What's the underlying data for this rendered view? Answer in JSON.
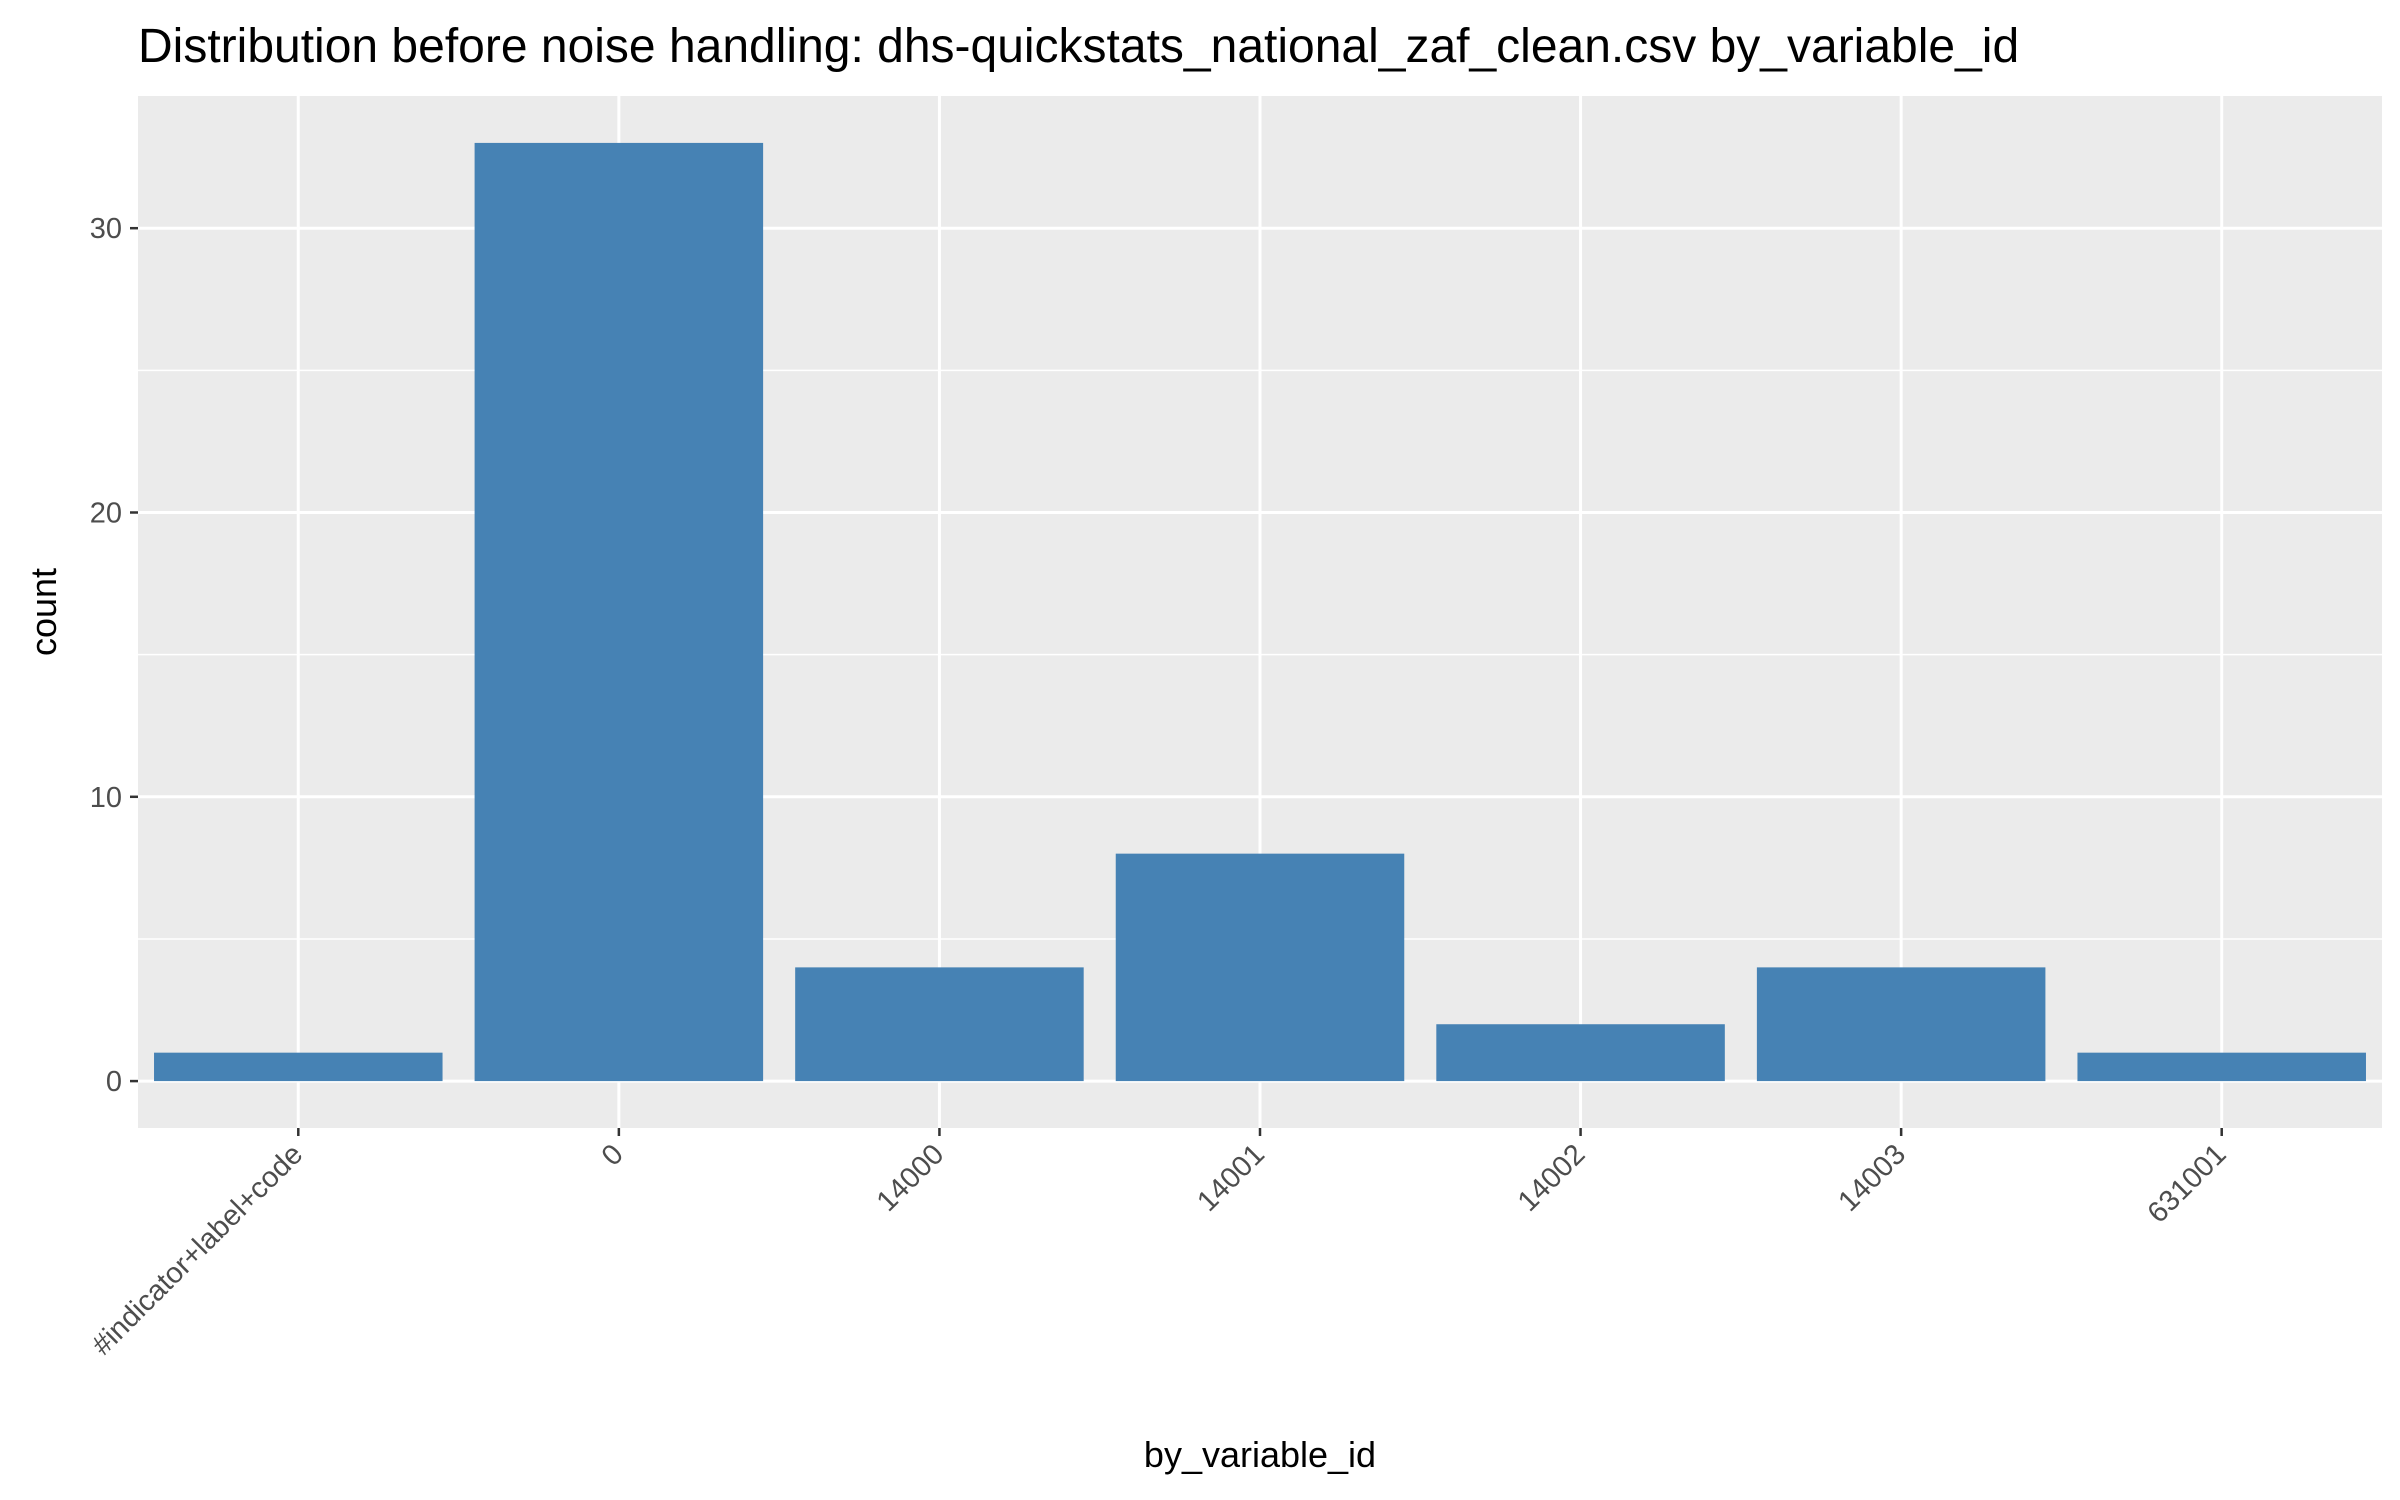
{
  "chart_data": {
    "type": "bar",
    "title": "Distribution before noise handling: dhs-quickstats_national_zaf_clean.csv by_variable_id",
    "xlabel": "by_variable_id",
    "ylabel": "count",
    "categories": [
      "#indicator+label+code",
      "0",
      "14000",
      "14001",
      "14002",
      "14003",
      "631001"
    ],
    "values": [
      1,
      33,
      4,
      8,
      2,
      4,
      1
    ],
    "y_ticks": [
      0,
      10,
      20,
      30
    ],
    "y_tick_labels": [
      "0",
      "10",
      "20",
      "30"
    ],
    "ylim": [
      -1.65,
      34.65
    ],
    "grid": true,
    "legend": "none",
    "colors": {
      "bar": "#4682b4",
      "panel_background": "#ebebeb",
      "grid_line": "#ffffff",
      "tick_text": "#4d4d4d",
      "tick_mark": "#333333"
    }
  }
}
